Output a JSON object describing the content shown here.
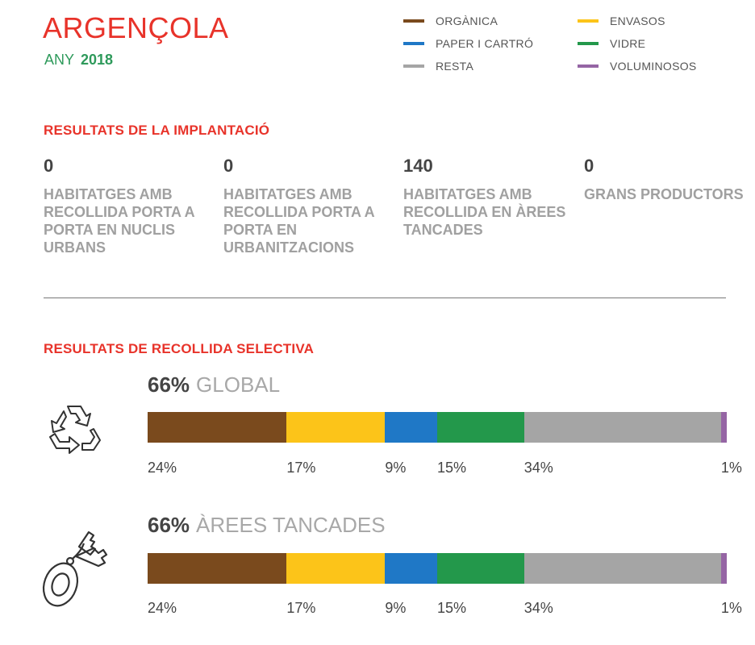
{
  "header": {
    "municipality": "ARGENÇOLA",
    "year_label": "ANY",
    "year": "2018"
  },
  "legend": [
    {
      "label": "ORGÀNICA",
      "color": "#7a4a1d"
    },
    {
      "label": "ENVASOS",
      "color": "#fcc419"
    },
    {
      "label": "PAPER I CARTRÓ",
      "color": "#1f78c6"
    },
    {
      "label": "VIDRE",
      "color": "#23984b"
    },
    {
      "label": "RESTA",
      "color": "#a5a5a5"
    },
    {
      "label": "VOLUMINOSOS",
      "color": "#9565a4"
    }
  ],
  "implantation": {
    "heading": "RESULTATS DE LA IMPLANTACIÓ",
    "stats": [
      {
        "value": "0",
        "label": "HABITATGES AMB RECOLLIDA PORTA A PORTA EN NUCLIS URBANS"
      },
      {
        "value": "0",
        "label": "HABITATGES AMB RECOLLIDA PORTA A PORTA EN URBANITZACIONS"
      },
      {
        "value": "140",
        "label": "HABITATGES AMB RECOLLIDA EN ÀREES TANCADES"
      },
      {
        "value": "0",
        "label": "GRANS PRODUCTORS"
      }
    ]
  },
  "selective": {
    "heading": "RESULTATS DE RECOLLIDA SELECTIVA"
  },
  "chart_data": [
    {
      "type": "bar",
      "stacked": true,
      "orientation": "horizontal",
      "title_pct": "66%",
      "title": "GLOBAL",
      "icon": "recycle-icon",
      "categories": [
        "ORGÀNICA",
        "ENVASOS",
        "PAPER I CARTRÓ",
        "VIDRE",
        "RESTA",
        "VOLUMINOSOS"
      ],
      "values": [
        24,
        17,
        9,
        15,
        34,
        1
      ],
      "value_labels": [
        "24%",
        "17%",
        "9%",
        "15%",
        "34%",
        "1%"
      ],
      "colors": [
        "#7a4a1d",
        "#fcc419",
        "#1f78c6",
        "#23984b",
        "#a5a5a5",
        "#9565a4"
      ]
    },
    {
      "type": "bar",
      "stacked": true,
      "orientation": "horizontal",
      "title_pct": "66%",
      "title": "ÀREES TANCADES",
      "icon": "keys-tag-icon",
      "categories": [
        "ORGÀNICA",
        "ENVASOS",
        "PAPER I CARTRÓ",
        "VIDRE",
        "RESTA",
        "VOLUMINOSOS"
      ],
      "values": [
        24,
        17,
        9,
        15,
        34,
        1
      ],
      "value_labels": [
        "24%",
        "17%",
        "9%",
        "15%",
        "34%",
        "1%"
      ],
      "colors": [
        "#7a4a1d",
        "#fcc419",
        "#1f78c6",
        "#23984b",
        "#a5a5a5",
        "#9565a4"
      ]
    }
  ]
}
